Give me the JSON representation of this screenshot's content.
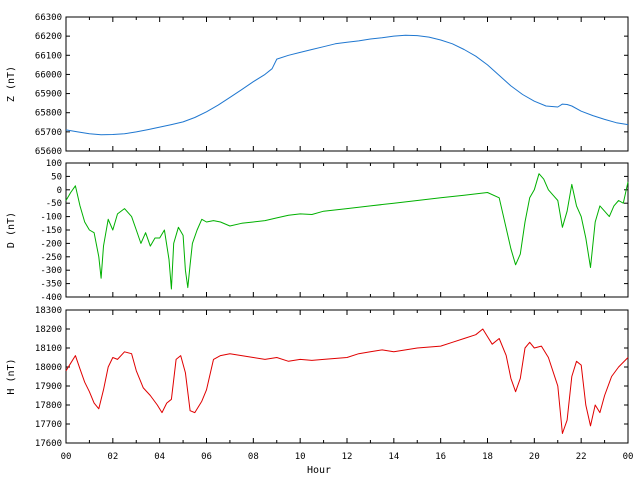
{
  "chart_data": [
    {
      "type": "line",
      "ylabel": "Z (nT)",
      "ylim": [
        65600,
        66300
      ],
      "yticks": [
        65600,
        65700,
        65800,
        65900,
        66000,
        66100,
        66200,
        66300
      ],
      "xlim": [
        0,
        24
      ],
      "color": "#1f77d0",
      "series": [
        {
          "x": [
            0,
            0.5,
            1,
            1.5,
            2,
            2.5,
            3,
            3.5,
            4,
            4.5,
            5,
            5.5,
            6,
            6.5,
            7,
            7.5,
            8,
            8.5,
            8.8,
            9,
            9.5,
            10,
            10.5,
            11,
            11.5,
            12,
            12.5,
            13,
            13.5,
            14,
            14.5,
            15,
            15.5,
            16,
            16.5,
            17,
            17.5,
            18,
            18.5,
            19,
            19.5,
            20,
            20.5,
            21,
            21.2,
            21.4,
            21.6,
            22,
            22.5,
            23,
            23.5,
            24
          ],
          "y": [
            65710,
            65700,
            65690,
            65685,
            65686,
            65690,
            65700,
            65712,
            65725,
            65738,
            65752,
            65775,
            65805,
            65840,
            65880,
            65920,
            65962,
            66000,
            66030,
            66080,
            66100,
            66115,
            66130,
            66145,
            66160,
            66168,
            66175,
            66185,
            66192,
            66200,
            66205,
            66203,
            66195,
            66180,
            66160,
            66130,
            66095,
            66050,
            65995,
            65940,
            65895,
            65860,
            65835,
            65830,
            65845,
            65843,
            65835,
            65808,
            65785,
            65765,
            65748,
            65738
          ]
        }
      ]
    },
    {
      "type": "line",
      "ylabel": "D (nT)",
      "ylim": [
        -400,
        100
      ],
      "yticks": [
        -400,
        -350,
        -300,
        -250,
        -200,
        -150,
        -100,
        -50,
        0,
        50,
        100
      ],
      "xlim": [
        0,
        24
      ],
      "color": "#00b000",
      "series": [
        {
          "x": [
            0,
            0.2,
            0.4,
            0.6,
            0.8,
            1,
            1.2,
            1.4,
            1.5,
            1.6,
            1.8,
            2,
            2.2,
            2.5,
            2.8,
            3,
            3.2,
            3.4,
            3.6,
            3.8,
            4,
            4.2,
            4.4,
            4.5,
            4.6,
            4.8,
            5,
            5.1,
            5.2,
            5.3,
            5.4,
            5.6,
            5.8,
            6,
            6.3,
            6.6,
            7,
            7.5,
            8,
            8.5,
            9,
            9.5,
            10,
            10.5,
            11,
            12,
            13,
            14,
            15,
            16,
            17,
            18,
            18.5,
            19,
            19.2,
            19.4,
            19.6,
            19.8,
            20,
            20.2,
            20.4,
            20.6,
            20.8,
            21,
            21.2,
            21.4,
            21.6,
            21.8,
            22,
            22.2,
            22.4,
            22.6,
            22.8,
            23,
            23.2,
            23.4,
            23.6,
            23.8,
            24
          ],
          "y": [
            -40,
            -10,
            15,
            -60,
            -120,
            -150,
            -160,
            -250,
            -330,
            -210,
            -110,
            -150,
            -90,
            -70,
            -100,
            -150,
            -200,
            -160,
            -210,
            -180,
            -180,
            -150,
            -260,
            -370,
            -200,
            -140,
            -170,
            -300,
            -365,
            -280,
            -200,
            -150,
            -110,
            -120,
            -115,
            -120,
            -135,
            -125,
            -120,
            -115,
            -105,
            -95,
            -90,
            -92,
            -80,
            -70,
            -60,
            -50,
            -40,
            -30,
            -20,
            -10,
            -30,
            -220,
            -280,
            -240,
            -120,
            -30,
            0,
            60,
            40,
            0,
            -20,
            -40,
            -140,
            -80,
            20,
            -60,
            -100,
            -180,
            -290,
            -120,
            -60,
            -80,
            -100,
            -60,
            -40,
            -50,
            30
          ]
        }
      ]
    },
    {
      "type": "line",
      "ylabel": "H (nT)",
      "xlabel": "Hour",
      "ylim": [
        17600,
        18300
      ],
      "yticks": [
        17600,
        17700,
        17800,
        17900,
        18000,
        18100,
        18200,
        18300
      ],
      "xlim": [
        0,
        24
      ],
      "xticks": [
        "00",
        "02",
        "04",
        "06",
        "08",
        "10",
        "12",
        "14",
        "16",
        "18",
        "20",
        "22",
        "00"
      ],
      "color": "#e00000",
      "series": [
        {
          "x": [
            0,
            0.2,
            0.4,
            0.6,
            0.8,
            1,
            1.2,
            1.4,
            1.6,
            1.8,
            2,
            2.2,
            2.5,
            2.8,
            3,
            3.3,
            3.6,
            3.9,
            4.1,
            4.3,
            4.5,
            4.7,
            4.9,
            5.1,
            5.3,
            5.5,
            5.8,
            6,
            6.3,
            6.6,
            7,
            7.5,
            8,
            8.5,
            9,
            9.5,
            10,
            10.5,
            11,
            12,
            12.5,
            13,
            13.5,
            14,
            15,
            16,
            16.5,
            17,
            17.5,
            17.8,
            18,
            18.2,
            18.5,
            18.8,
            19,
            19.2,
            19.4,
            19.6,
            19.8,
            20,
            20.3,
            20.6,
            21,
            21.2,
            21.4,
            21.6,
            21.8,
            22,
            22.2,
            22.4,
            22.6,
            22.8,
            23,
            23.3,
            23.6,
            24
          ],
          "y": [
            17980,
            18020,
            18060,
            17990,
            17920,
            17870,
            17810,
            17780,
            17880,
            18000,
            18050,
            18040,
            18080,
            18070,
            17980,
            17890,
            17850,
            17800,
            17760,
            17810,
            17830,
            18040,
            18060,
            17970,
            17770,
            17760,
            17820,
            17880,
            18040,
            18060,
            18070,
            18060,
            18050,
            18040,
            18050,
            18030,
            18040,
            18035,
            18040,
            18050,
            18070,
            18080,
            18090,
            18080,
            18100,
            18110,
            18130,
            18150,
            18170,
            18200,
            18160,
            18120,
            18150,
            18060,
            17940,
            17870,
            17940,
            18100,
            18130,
            18100,
            18110,
            18050,
            17900,
            17650,
            17720,
            17950,
            18030,
            18010,
            17800,
            17690,
            17800,
            17760,
            17850,
            17950,
            18000,
            18050
          ]
        }
      ]
    }
  ]
}
